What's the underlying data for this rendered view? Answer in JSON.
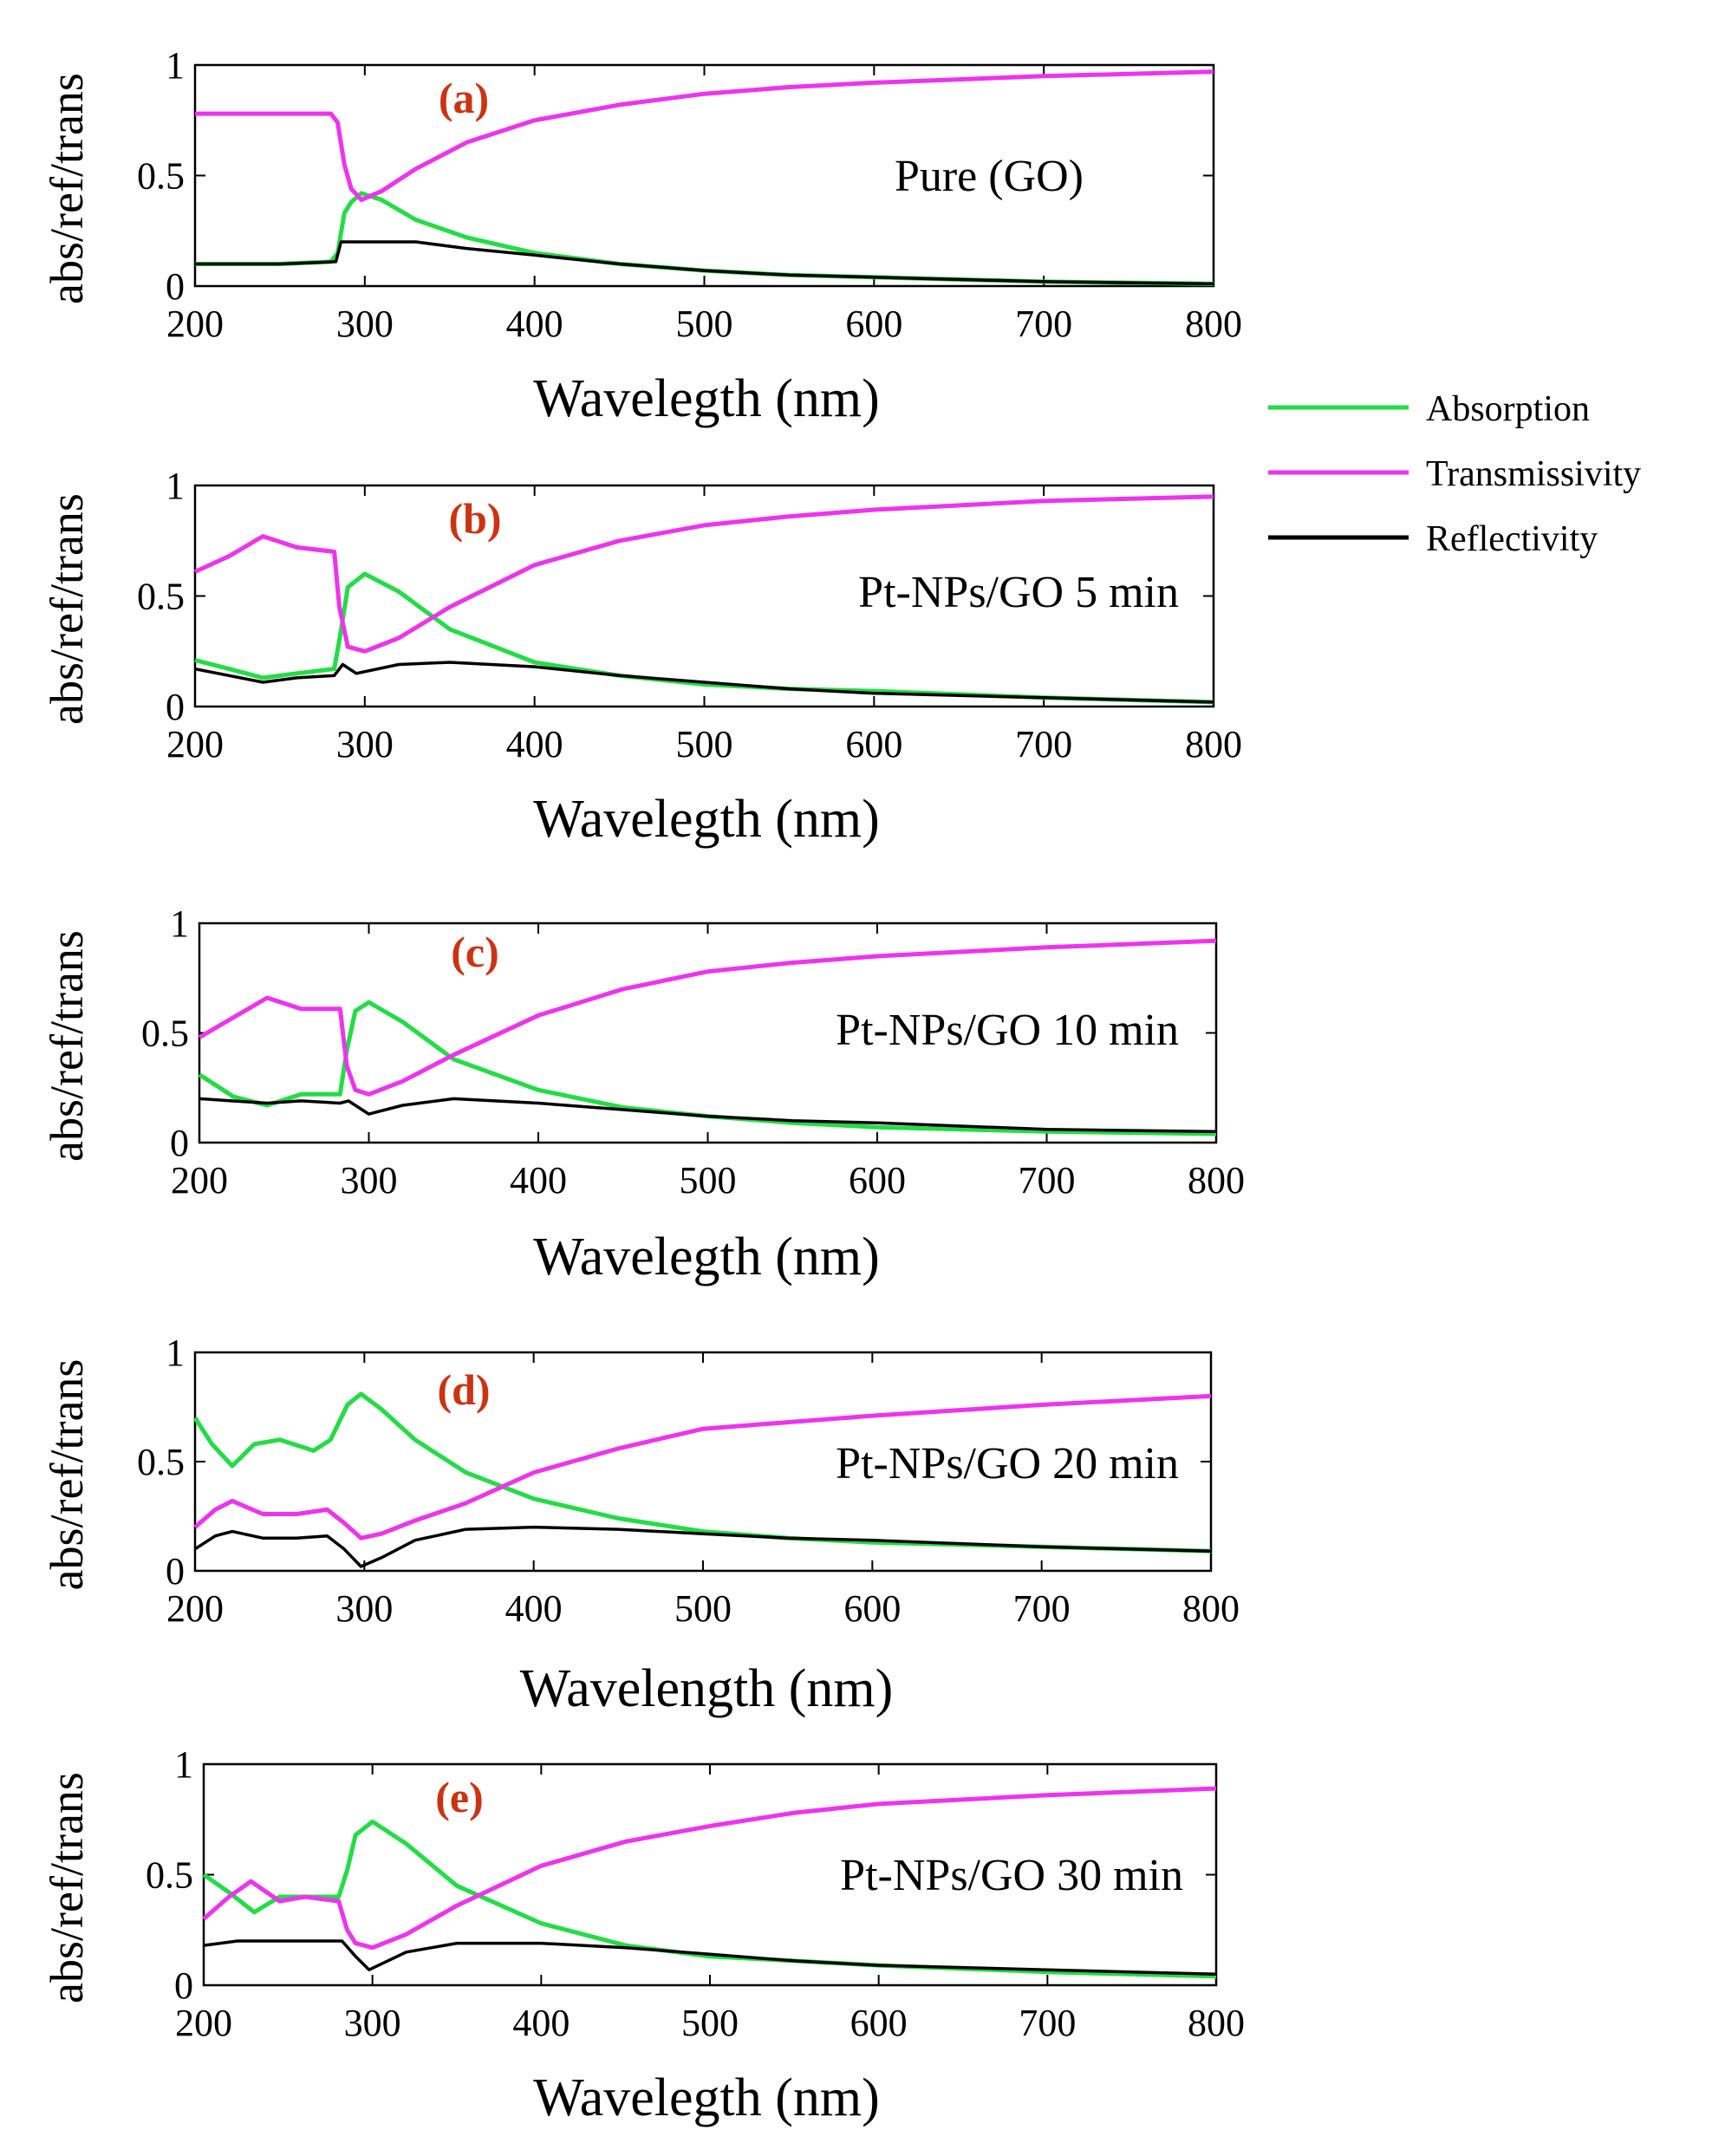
{
  "colors": {
    "absorption": "#22dd44",
    "transmissivity": "#ee33ee",
    "reflectivity": "#000000",
    "panel_letter": "#cc3311"
  },
  "legend": {
    "items": [
      {
        "key": "absorption",
        "label": "Absorption"
      },
      {
        "key": "transmissivity",
        "label": "Transmissivity"
      },
      {
        "key": "reflectivity",
        "label": "Reflectivity"
      }
    ]
  },
  "chart_data": [
    {
      "type": "line",
      "panel": "(a)",
      "sample_label": "Pure (GO)",
      "xlabel": "Wavelegth (nm)",
      "ylabel": "abs/ref/trans",
      "xlim": [
        200,
        800
      ],
      "ylim": [
        0,
        1
      ],
      "xticks": [
        "200",
        "300",
        "400",
        "500",
        "600",
        "700",
        "800"
      ],
      "yticks": [
        "0",
        "0.5",
        "1"
      ],
      "series": [
        {
          "name": "Absorption",
          "x": [
            200,
            250,
            280,
            284,
            288,
            292,
            298,
            310,
            330,
            360,
            400,
            450,
            500,
            550,
            600,
            700,
            800
          ],
          "y": [
            0.1,
            0.1,
            0.11,
            0.15,
            0.33,
            0.38,
            0.42,
            0.39,
            0.3,
            0.22,
            0.15,
            0.1,
            0.07,
            0.05,
            0.04,
            0.02,
            0.01
          ]
        },
        {
          "name": "Transmissivity",
          "x": [
            200,
            250,
            280,
            284,
            288,
            292,
            298,
            310,
            330,
            360,
            400,
            450,
            500,
            550,
            600,
            700,
            800
          ],
          "y": [
            0.78,
            0.78,
            0.78,
            0.74,
            0.55,
            0.44,
            0.39,
            0.43,
            0.53,
            0.65,
            0.75,
            0.82,
            0.87,
            0.9,
            0.92,
            0.95,
            0.97
          ]
        },
        {
          "name": "Reflectivity",
          "x": [
            200,
            250,
            283,
            286,
            300,
            330,
            360,
            400,
            450,
            500,
            550,
            600,
            700,
            800
          ],
          "y": [
            0.1,
            0.1,
            0.11,
            0.2,
            0.2,
            0.2,
            0.17,
            0.14,
            0.1,
            0.07,
            0.05,
            0.04,
            0.02,
            0.01
          ]
        }
      ]
    },
    {
      "type": "line",
      "panel": "(b)",
      "sample_label": "Pt-NPs/GO 5 min",
      "xlabel": "Wavelegth (nm)",
      "ylabel": "abs/ref/trans",
      "xlim": [
        200,
        800
      ],
      "ylim": [
        0,
        1
      ],
      "xticks": [
        "200",
        "300",
        "400",
        "500",
        "600",
        "700",
        "800"
      ],
      "yticks": [
        "0",
        "0.5",
        "1"
      ],
      "series": [
        {
          "name": "Absorption",
          "x": [
            200,
            220,
            240,
            260,
            282,
            285,
            290,
            300,
            320,
            350,
            400,
            450,
            500,
            550,
            600,
            700,
            800
          ],
          "y": [
            0.21,
            0.17,
            0.13,
            0.15,
            0.17,
            0.3,
            0.54,
            0.6,
            0.52,
            0.35,
            0.2,
            0.14,
            0.1,
            0.08,
            0.07,
            0.04,
            0.02
          ]
        },
        {
          "name": "Transmissivity",
          "x": [
            200,
            220,
            240,
            260,
            282,
            285,
            290,
            300,
            320,
            350,
            400,
            450,
            500,
            550,
            600,
            700,
            800
          ],
          "y": [
            0.61,
            0.68,
            0.77,
            0.72,
            0.7,
            0.45,
            0.27,
            0.25,
            0.31,
            0.45,
            0.64,
            0.75,
            0.82,
            0.86,
            0.89,
            0.93,
            0.95
          ]
        },
        {
          "name": "Reflectivity",
          "x": [
            200,
            220,
            240,
            260,
            282,
            287,
            295,
            320,
            350,
            400,
            450,
            500,
            550,
            600,
            700,
            800
          ],
          "y": [
            0.17,
            0.14,
            0.11,
            0.13,
            0.14,
            0.19,
            0.15,
            0.19,
            0.2,
            0.18,
            0.14,
            0.11,
            0.08,
            0.06,
            0.04,
            0.02
          ]
        }
      ]
    },
    {
      "type": "line",
      "panel": "(c)",
      "sample_label": "Pt-NPs/GO 10 min",
      "xlabel": "Wavelegth (nm)",
      "ylabel": "abs/ref/trans",
      "xlim": [
        200,
        800
      ],
      "ylim": [
        0,
        1
      ],
      "xticks": [
        "200",
        "300",
        "400",
        "500",
        "600",
        "700",
        "800"
      ],
      "yticks": [
        "0",
        "0.5",
        "1"
      ],
      "series": [
        {
          "name": "Absorption",
          "x": [
            200,
            220,
            240,
            260,
            283,
            287,
            292,
            300,
            320,
            350,
            400,
            450,
            500,
            550,
            600,
            700,
            800
          ],
          "y": [
            0.31,
            0.21,
            0.17,
            0.22,
            0.22,
            0.42,
            0.6,
            0.64,
            0.55,
            0.38,
            0.24,
            0.16,
            0.12,
            0.09,
            0.07,
            0.05,
            0.04
          ]
        },
        {
          "name": "Transmissivity",
          "x": [
            200,
            220,
            240,
            260,
            283,
            287,
            292,
            300,
            320,
            350,
            400,
            450,
            500,
            550,
            600,
            700,
            800
          ],
          "y": [
            0.48,
            0.57,
            0.66,
            0.61,
            0.61,
            0.35,
            0.24,
            0.22,
            0.28,
            0.4,
            0.58,
            0.7,
            0.78,
            0.82,
            0.85,
            0.89,
            0.92
          ]
        },
        {
          "name": "Reflectivity",
          "x": [
            200,
            240,
            260,
            283,
            288,
            300,
            320,
            350,
            400,
            450,
            500,
            550,
            600,
            700,
            800
          ],
          "y": [
            0.2,
            0.18,
            0.19,
            0.18,
            0.19,
            0.13,
            0.17,
            0.2,
            0.18,
            0.15,
            0.12,
            0.1,
            0.09,
            0.06,
            0.05
          ]
        }
      ]
    },
    {
      "type": "line",
      "panel": "(d)",
      "sample_label": "Pt-NPs/GO 20 min",
      "xlabel": "Wavelength (nm)",
      "ylabel": "abs/ref/trans",
      "xlim": [
        200,
        800
      ],
      "ylim": [
        0,
        1
      ],
      "xticks": [
        "200",
        "300",
        "400",
        "500",
        "600",
        "700",
        "800"
      ],
      "yticks": [
        "0",
        "0.5",
        "1"
      ],
      "series": [
        {
          "name": "Absorption",
          "x": [
            200,
            210,
            222,
            235,
            250,
            270,
            280,
            290,
            298,
            310,
            330,
            360,
            400,
            450,
            500,
            550,
            600,
            700,
            800
          ],
          "y": [
            0.7,
            0.58,
            0.48,
            0.58,
            0.6,
            0.55,
            0.6,
            0.76,
            0.81,
            0.74,
            0.6,
            0.45,
            0.33,
            0.24,
            0.18,
            0.15,
            0.13,
            0.11,
            0.09
          ]
        },
        {
          "name": "Transmissivity",
          "x": [
            200,
            212,
            222,
            240,
            260,
            278,
            288,
            298,
            310,
            330,
            360,
            400,
            450,
            500,
            550,
            600,
            700,
            800
          ],
          "y": [
            0.2,
            0.28,
            0.32,
            0.26,
            0.26,
            0.28,
            0.22,
            0.15,
            0.17,
            0.23,
            0.31,
            0.45,
            0.56,
            0.65,
            0.68,
            0.71,
            0.76,
            0.8
          ]
        },
        {
          "name": "Reflectivity",
          "x": [
            200,
            212,
            222,
            240,
            260,
            278,
            288,
            298,
            310,
            330,
            360,
            400,
            450,
            500,
            550,
            600,
            700,
            800
          ],
          "y": [
            0.1,
            0.16,
            0.18,
            0.15,
            0.15,
            0.16,
            0.1,
            0.02,
            0.06,
            0.14,
            0.19,
            0.2,
            0.19,
            0.17,
            0.15,
            0.14,
            0.11,
            0.09
          ]
        }
      ]
    },
    {
      "type": "line",
      "panel": "(e)",
      "sample_label": "Pt-NPs/GO 30 min",
      "xlabel": "Wavelegth (nm)",
      "ylabel": "abs/ref/trans",
      "xlim": [
        200,
        800
      ],
      "ylim": [
        0,
        1
      ],
      "xticks": [
        "200",
        "300",
        "400",
        "500",
        "600",
        "700",
        "800"
      ],
      "yticks": [
        "0",
        "0.5",
        "1"
      ],
      "series": [
        {
          "name": "Absorption",
          "x": [
            200,
            215,
            230,
            245,
            260,
            280,
            285,
            290,
            300,
            320,
            350,
            400,
            450,
            500,
            550,
            600,
            700,
            800
          ],
          "y": [
            0.5,
            0.42,
            0.33,
            0.4,
            0.4,
            0.4,
            0.52,
            0.68,
            0.74,
            0.64,
            0.45,
            0.28,
            0.18,
            0.13,
            0.11,
            0.09,
            0.06,
            0.04
          ]
        },
        {
          "name": "Transmissivity",
          "x": [
            200,
            215,
            228,
            245,
            260,
            280,
            285,
            290,
            300,
            320,
            350,
            400,
            450,
            500,
            550,
            600,
            700,
            800
          ],
          "y": [
            0.3,
            0.4,
            0.47,
            0.38,
            0.4,
            0.38,
            0.25,
            0.19,
            0.17,
            0.23,
            0.36,
            0.54,
            0.65,
            0.72,
            0.78,
            0.82,
            0.86,
            0.89
          ]
        },
        {
          "name": "Reflectivity",
          "x": [
            200,
            220,
            260,
            282,
            290,
            298,
            320,
            350,
            400,
            450,
            500,
            550,
            600,
            700,
            800
          ],
          "y": [
            0.18,
            0.2,
            0.2,
            0.2,
            0.13,
            0.07,
            0.15,
            0.19,
            0.19,
            0.17,
            0.14,
            0.11,
            0.09,
            0.07,
            0.05
          ]
        }
      ]
    }
  ]
}
